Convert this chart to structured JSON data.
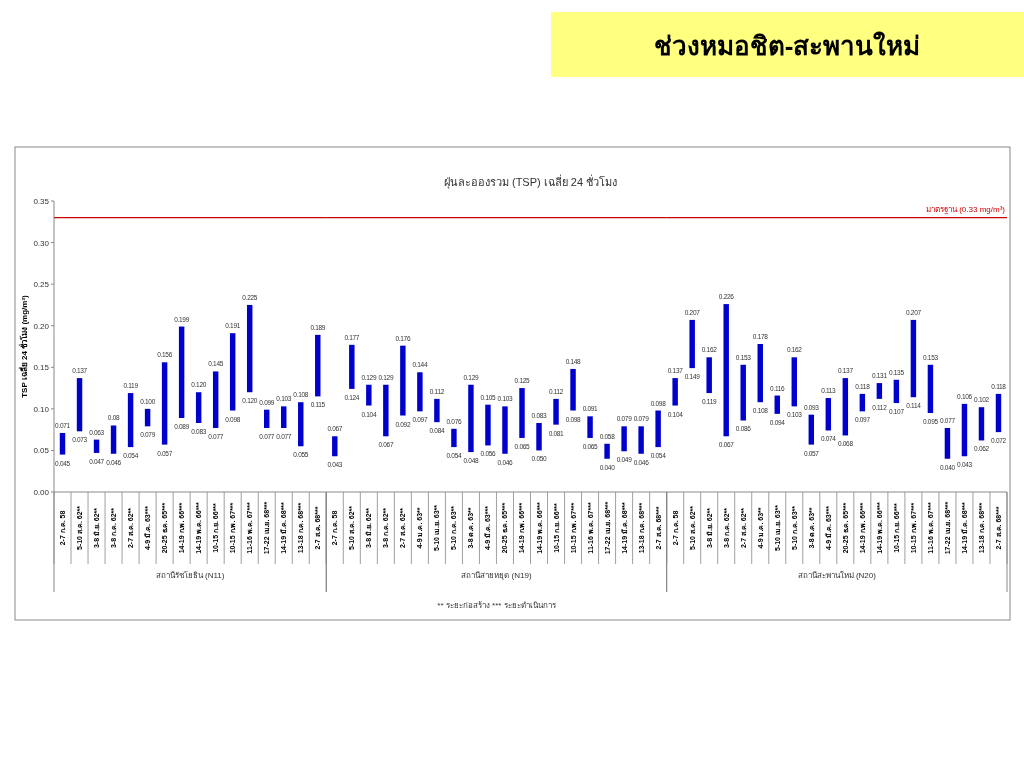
{
  "chart_data": [
    {
      "type": "bar",
      "ylabel": "TSP เฉลี่ย 24 ชั่วโมง (mg/m³)",
      "xlabel": "สถานีรัชโยธิน (N11)",
      "categories": [
        "2-7 ก.ค. 58",
        "5-10 ส.ค. 62**",
        "3-8 มิ.ย. 62**",
        "3-8 ก.ค. 62**",
        "2-7 ส.ค. 62**",
        "4-9 มี.ค. 63***",
        "20-25 ธ.ค. 65***",
        "14-19 ก.พ. 66***",
        "14-19 พ.ค. 66***",
        "10-15 ก.ย. 66***",
        "10-15 ก.พ. 67***",
        "11-16 พ.ค. 67***",
        "17-22 เม.ย. 68***",
        "14-19 มี.ค. 68***",
        "13-18 ก.ค. 68***",
        "2-7 ส.ค. 68***"
      ],
      "base": [
        0.045,
        0.073,
        0.047,
        0.046,
        0.054,
        0.079,
        0.057,
        0.089,
        0.083,
        0.077,
        0.098,
        0.12,
        0.077,
        0.077,
        0.055,
        0.115
      ],
      "values": [
        0.026,
        0.064,
        0.016,
        0.034,
        0.065,
        0.021,
        0.099,
        0.11,
        0.037,
        0.068,
        0.093,
        0.105,
        0.022,
        0.026,
        0.053,
        0.074
      ],
      "color": "#0000cc",
      "ylim": [
        0,
        0.35
      ],
      "yticks": [
        {
          "value": 0,
          "label": "0.00"
        },
        {
          "value": 0.05,
          "label": "0.05"
        },
        {
          "value": 0.1,
          "label": "0.10"
        },
        {
          "value": 0.15,
          "label": "0.15"
        },
        {
          "value": 0.2,
          "label": "0.20"
        },
        {
          "value": 0.25,
          "label": "0.25"
        },
        {
          "value": 0.3,
          "label": "0.30"
        },
        {
          "value": 0.35,
          "label": "0.35"
        }
      ],
      "ref_lines": [
        {
          "axis": "y",
          "value": 0.33,
          "color": "#cc0000"
        }
      ],
      "annotations": [
        {
          "text": "0.071",
          "x": "2-7 ก.ค. 58",
          "y": 0.071
        },
        {
          "text": "0.045",
          "x": "2-7 ก.ค. 58",
          "y": 0.045
        },
        {
          "text": "0.137",
          "x": "5-10 ส.ค. 62**",
          "y": 0.137
        },
        {
          "text": "0.073",
          "x": "5-10 ส.ค. 62**",
          "y": 0.073
        },
        {
          "text": "0.063",
          "x": "3-8 มิ.ย. 62**",
          "y": 0.063
        },
        {
          "text": "0.047",
          "x": "3-8 มิ.ย. 62**",
          "y": 0.047
        },
        {
          "text": "0.08",
          "x": "3-8 ก.ค. 62**",
          "y": 0.08
        },
        {
          "text": "0.046",
          "x": "3-8 ก.ค. 62**",
          "y": 0.046
        },
        {
          "text": "0.119",
          "x": "2-7 ส.ค. 62**",
          "y": 0.119
        },
        {
          "text": "0.054",
          "x": "2-7 ส.ค. 62**",
          "y": 0.054
        },
        {
          "text": "0.100",
          "x": "4-9 มี.ค. 63***",
          "y": 0.1
        },
        {
          "text": "0.079",
          "x": "4-9 มี.ค. 63***",
          "y": 0.079
        },
        {
          "text": "0.156",
          "x": "20-25 ธ.ค. 65***",
          "y": 0.156
        },
        {
          "text": "0.057",
          "x": "20-25 ธ.ค. 65***",
          "y": 0.057
        },
        {
          "text": "0.199",
          "x": "14-19 ก.พ. 66***",
          "y": 0.199
        },
        {
          "text": "0.089",
          "x": "14-19 ก.พ. 66***",
          "y": 0.089
        },
        {
          "text": "0.120",
          "x": "14-19 พ.ค. 66***",
          "y": 0.12
        },
        {
          "text": "0.083",
          "x": "14-19 พ.ค. 66***",
          "y": 0.083
        },
        {
          "text": "0.145",
          "x": "10-15 ก.ย. 66***",
          "y": 0.145
        },
        {
          "text": "0.077",
          "x": "10-15 ก.ย. 66***",
          "y": 0.077
        },
        {
          "text": "0.191",
          "x": "10-15 ก.พ. 67***",
          "y": 0.191
        },
        {
          "text": "0.098",
          "x": "10-15 ก.พ. 67***",
          "y": 0.098
        },
        {
          "text": "0.225",
          "x": "11-16 พ.ค. 67***",
          "y": 0.225
        },
        {
          "text": "0.120",
          "x": "11-16 พ.ค. 67***",
          "y": 0.12
        },
        {
          "text": "0.099",
          "x": "17-22 เม.ย. 68***",
          "y": 0.099
        },
        {
          "text": "0.077",
          "x": "17-22 เม.ย. 68***",
          "y": 0.077
        },
        {
          "text": "0.103",
          "x": "14-19 มี.ค. 68***",
          "y": 0.103
        },
        {
          "text": "0.077",
          "x": "14-19 มี.ค. 68***",
          "y": 0.077
        },
        {
          "text": "0.108",
          "x": "13-18 ก.ค. 68***",
          "y": 0.108
        },
        {
          "text": "0.055",
          "x": "13-18 ก.ค. 68***",
          "y": 0.055
        },
        {
          "text": "0.189",
          "x": "2-7 ส.ค. 68***",
          "y": 0.189
        },
        {
          "text": "0.115",
          "x": "2-7 ส.ค. 68***",
          "y": 0.115
        }
      ]
    },
    {
      "type": "bar",
      "subtitle": "ฝุ่นละอองรวม (TSP) เฉลี่ย 24 ชั่วโมง",
      "xlabel": "สถานีสายหยุด (N19)",
      "categories": [
        "2-7 ก.ค. 58",
        "5-10 ส.ค. 62**",
        "3-8 มิ.ย. 62**",
        "3-8 ก.ค. 62**",
        "2-7 ส.ค. 62**",
        "4-9 ม.ค. 63**",
        "5-10 เม.ย. 63**",
        "5-10 ก.ค. 63**",
        "3-8 ต.ค. 63**",
        "4-9 มี.ค. 63***",
        "20-25 ธ.ค. 65***",
        "14-19 ก.พ. 66***",
        "14-19 พ.ค. 66***",
        "10-15 ก.ย. 66***",
        "10-15 ก.พ. 67***",
        "11-16 พ.ค. 67***",
        "17-22 เม.ย. 68***",
        "14-19 มี.ค. 68***",
        "13-18 ก.ค. 68***",
        "2-7 ส.ค. 68***"
      ],
      "base": [
        0.043,
        0.124,
        0.104,
        0.067,
        0.092,
        0.097,
        0.084,
        0.054,
        0.048,
        0.056,
        0.046,
        0.065,
        0.05,
        0.081,
        0.098,
        0.065,
        0.04,
        0.049,
        0.046,
        0.054
      ],
      "values": [
        0.024,
        0.053,
        0.025,
        0.062,
        0.084,
        0.047,
        0.028,
        0.022,
        0.081,
        0.049,
        0.057,
        0.06,
        0.033,
        0.031,
        0.05,
        0.026,
        0.018,
        0.03,
        0.033,
        0.044
      ],
      "color": "#0000cc",
      "tick_labels": "x",
      "ylim": [
        0,
        0.35
      ],
      "ref_lines": [
        {
          "axis": "y",
          "value": 0.33,
          "color": "#cc0000"
        }
      ],
      "annotations": [
        "** ระยะก่อสร้าง   *** ระยะดำเนินการ",
        {
          "text": "0.067",
          "x": "2-7 ก.ค. 58",
          "y": 0.067
        },
        {
          "text": "0.043",
          "x": "2-7 ก.ค. 58",
          "y": 0.043
        },
        {
          "text": "0.177",
          "x": "5-10 ส.ค. 62**",
          "y": 0.177
        },
        {
          "text": "0.124",
          "x": "5-10 ส.ค. 62**",
          "y": 0.124
        },
        {
          "text": "0.129",
          "x": "3-8 มิ.ย. 62**",
          "y": 0.129
        },
        {
          "text": "0.104",
          "x": "3-8 มิ.ย. 62**",
          "y": 0.104
        },
        {
          "text": "0.129",
          "x": "3-8 ก.ค. 62**",
          "y": 0.129
        },
        {
          "text": "0.067",
          "x": "3-8 ก.ค. 62**",
          "y": 0.067
        },
        {
          "text": "0.176",
          "x": "2-7 ส.ค. 62**",
          "y": 0.176
        },
        {
          "text": "0.092",
          "x": "2-7 ส.ค. 62**",
          "y": 0.092
        },
        {
          "text": "0.144",
          "x": "4-9 ม.ค. 63**",
          "y": 0.144
        },
        {
          "text": "0.097",
          "x": "4-9 ม.ค. 63**",
          "y": 0.097
        },
        {
          "text": "0.112",
          "x": "5-10 เม.ย. 63**",
          "y": 0.112
        },
        {
          "text": "0.084",
          "x": "5-10 เม.ย. 63**",
          "y": 0.084
        },
        {
          "text": "0.076",
          "x": "5-10 ก.ค. 63**",
          "y": 0.076
        },
        {
          "text": "0.054",
          "x": "5-10 ก.ค. 63**",
          "y": 0.054
        },
        {
          "text": "0.129",
          "x": "3-8 ต.ค. 63**",
          "y": 0.129
        },
        {
          "text": "0.048",
          "x": "3-8 ต.ค. 63**",
          "y": 0.048
        },
        {
          "text": "0.105",
          "x": "4-9 มี.ค. 63***",
          "y": 0.105
        },
        {
          "text": "0.056",
          "x": "4-9 มี.ค. 63***",
          "y": 0.056
        },
        {
          "text": "0.103",
          "x": "20-25 ธ.ค. 65***",
          "y": 0.103
        },
        {
          "text": "0.046",
          "x": "20-25 ธ.ค. 65***",
          "y": 0.046
        },
        {
          "text": "0.125",
          "x": "14-19 ก.พ. 66***",
          "y": 0.125
        },
        {
          "text": "0.065",
          "x": "14-19 ก.พ. 66***",
          "y": 0.065
        },
        {
          "text": "0.083",
          "x": "14-19 พ.ค. 66***",
          "y": 0.083
        },
        {
          "text": "0.050",
          "x": "14-19 พ.ค. 66***",
          "y": 0.05
        },
        {
          "text": "0.112",
          "x": "10-15 ก.ย. 66***",
          "y": 0.112
        },
        {
          "text": "0.081",
          "x": "10-15 ก.ย. 66***",
          "y": 0.081
        },
        {
          "text": "0.148",
          "x": "10-15 ก.พ. 67***",
          "y": 0.148
        },
        {
          "text": "0.098",
          "x": "10-15 ก.พ. 67***",
          "y": 0.098
        },
        {
          "text": "0.091",
          "x": "11-16 พ.ค. 67***",
          "y": 0.091
        },
        {
          "text": "0.065",
          "x": "11-16 พ.ค. 67***",
          "y": 0.065
        },
        {
          "text": "0.058",
          "x": "17-22 เม.ย. 68***",
          "y": 0.058
        },
        {
          "text": "0.040",
          "x": "17-22 เม.ย. 68***",
          "y": 0.04
        },
        {
          "text": "0.079",
          "x": "14-19 มี.ค. 68***",
          "y": 0.079
        },
        {
          "text": "0.049",
          "x": "14-19 มี.ค. 68***",
          "y": 0.049
        },
        {
          "text": "0.079",
          "x": "13-18 ก.ค. 68***",
          "y": 0.079
        },
        {
          "text": "0.046",
          "x": "13-18 ก.ค. 68***",
          "y": 0.046
        },
        {
          "text": "0.098",
          "x": "2-7 ส.ค. 68***",
          "y": 0.098
        },
        {
          "text": "0.054",
          "x": "2-7 ส.ค. 68***",
          "y": 0.054
        }
      ]
    },
    {
      "type": "bar",
      "title": "ช่วงหมอชิต-สะพานใหม่",
      "xlabel": "สถานีสะพานใหม่ (N20)",
      "categories": [
        "2-7 ก.ค. 58",
        "5-10 ส.ค. 62**",
        "3-8 มิ.ย. 62**",
        "3-8 ก.ค. 62**",
        "2-7 ส.ค. 62**",
        "4-9 ม.ค. 63**",
        "5-10 เม.ย. 63**",
        "5-10 ก.ค. 63**",
        "3-8 ต.ค. 63**",
        "4-9 มี.ค. 63***",
        "20-25 ธ.ค. 65***",
        "14-19 ก.พ. 66***",
        "14-19 พ.ค. 66***",
        "10-15 ก.ย. 66***",
        "10-15 ก.พ. 67***",
        "11-16 พ.ค. 67***",
        "17-22 เม.ย. 68***",
        "14-19 มี.ค. 68***",
        "13-18 ก.ค. 68***",
        "2-7 ส.ค. 68***"
      ],
      "base": [
        0.104,
        0.149,
        0.119,
        0.067,
        0.086,
        0.108,
        0.094,
        0.103,
        0.057,
        0.074,
        0.068,
        0.097,
        0.112,
        0.107,
        0.114,
        0.095,
        0.04,
        0.043,
        0.062,
        0.072
      ],
      "values": [
        0.033,
        0.058,
        0.043,
        0.159,
        0.067,
        0.07,
        0.022,
        0.059,
        0.036,
        0.039,
        0.069,
        0.021,
        0.019,
        0.028,
        0.093,
        0.058,
        0.037,
        0.063,
        0.04,
        0.046
      ],
      "color": "#0000cc",
      "tick_labels": "x",
      "ylim": [
        0,
        0.35
      ],
      "ref_lines": [
        {
          "axis": "y",
          "value": 0.33,
          "label": "มาตรฐาน (0.33 mg/m³)",
          "color": "#cc0000"
        }
      ],
      "annotations": [
        {
          "text": "0.137",
          "x": "2-7 ก.ค. 58",
          "y": 0.137
        },
        {
          "text": "0.104",
          "x": "2-7 ก.ค. 58",
          "y": 0.104
        },
        {
          "text": "0.207",
          "x": "5-10 ส.ค. 62**",
          "y": 0.207
        },
        {
          "text": "0.149",
          "x": "5-10 ส.ค. 62**",
          "y": 0.149
        },
        {
          "text": "0.162",
          "x": "3-8 มิ.ย. 62**",
          "y": 0.162
        },
        {
          "text": "0.119",
          "x": "3-8 มิ.ย. 62**",
          "y": 0.119
        },
        {
          "text": "0.226",
          "x": "3-8 ก.ค. 62**",
          "y": 0.226
        },
        {
          "text": "0.067",
          "x": "3-8 ก.ค. 62**",
          "y": 0.067
        },
        {
          "text": "0.153",
          "x": "2-7 ส.ค. 62**",
          "y": 0.153
        },
        {
          "text": "0.086",
          "x": "2-7 ส.ค. 62**",
          "y": 0.086
        },
        {
          "text": "0.178",
          "x": "4-9 ม.ค. 63**",
          "y": 0.178
        },
        {
          "text": "0.108",
          "x": "4-9 ม.ค. 63**",
          "y": 0.108
        },
        {
          "text": "0.116",
          "x": "5-10 เม.ย. 63**",
          "y": 0.116
        },
        {
          "text": "0.094",
          "x": "5-10 เม.ย. 63**",
          "y": 0.094
        },
        {
          "text": "0.162",
          "x": "5-10 ก.ค. 63**",
          "y": 0.162
        },
        {
          "text": "0.103",
          "x": "5-10 ก.ค. 63**",
          "y": 0.103
        },
        {
          "text": "0.093",
          "x": "3-8 ต.ค. 63**",
          "y": 0.093
        },
        {
          "text": "0.057",
          "x": "3-8 ต.ค. 63**",
          "y": 0.057
        },
        {
          "text": "0.113",
          "x": "4-9 มี.ค. 63***",
          "y": 0.113
        },
        {
          "text": "0.074",
          "x": "4-9 มี.ค. 63***",
          "y": 0.074
        },
        {
          "text": "0.137",
          "x": "20-25 ธ.ค. 65***",
          "y": 0.137
        },
        {
          "text": "0.068",
          "x": "20-25 ธ.ค. 65***",
          "y": 0.068
        },
        {
          "text": "0.118",
          "x": "14-19 ก.พ. 66***",
          "y": 0.118
        },
        {
          "text": "0.097",
          "x": "14-19 ก.พ. 66***",
          "y": 0.097
        },
        {
          "text": "0.131",
          "x": "14-19 พ.ค. 66***",
          "y": 0.131
        },
        {
          "text": "0.112",
          "x": "14-19 พ.ค. 66***",
          "y": 0.112
        },
        {
          "text": "0.135",
          "x": "10-15 ก.ย. 66***",
          "y": 0.135
        },
        {
          "text": "0.107",
          "x": "10-15 ก.ย. 66***",
          "y": 0.107
        },
        {
          "text": "0.207",
          "x": "10-15 ก.พ. 67***",
          "y": 0.207
        },
        {
          "text": "0.114",
          "x": "10-15 ก.พ. 67***",
          "y": 0.114
        },
        {
          "text": "0.153",
          "x": "11-16 พ.ค. 67***",
          "y": 0.153
        },
        {
          "text": "0.095",
          "x": "11-16 พ.ค. 67***",
          "y": 0.095
        },
        {
          "text": "0.077",
          "x": "17-22 เม.ย. 68***",
          "y": 0.077
        },
        {
          "text": "0.040",
          "x": "17-22 เม.ย. 68***",
          "y": 0.04
        },
        {
          "text": "0.106",
          "x": "14-19 มี.ค. 68***",
          "y": 0.106
        },
        {
          "text": "0.043",
          "x": "14-19 มี.ค. 68***",
          "y": 0.043
        },
        {
          "text": "0.102",
          "x": "13-18 ก.ค. 68***",
          "y": 0.102
        },
        {
          "text": "0.062",
          "x": "13-18 ก.ค. 68***",
          "y": 0.062
        },
        {
          "text": "0.118",
          "x": "2-7 ส.ค. 68***",
          "y": 0.118
        },
        {
          "text": "0.072",
          "x": "2-7 ส.ค. 68***",
          "y": 0.072
        }
      ]
    }
  ]
}
